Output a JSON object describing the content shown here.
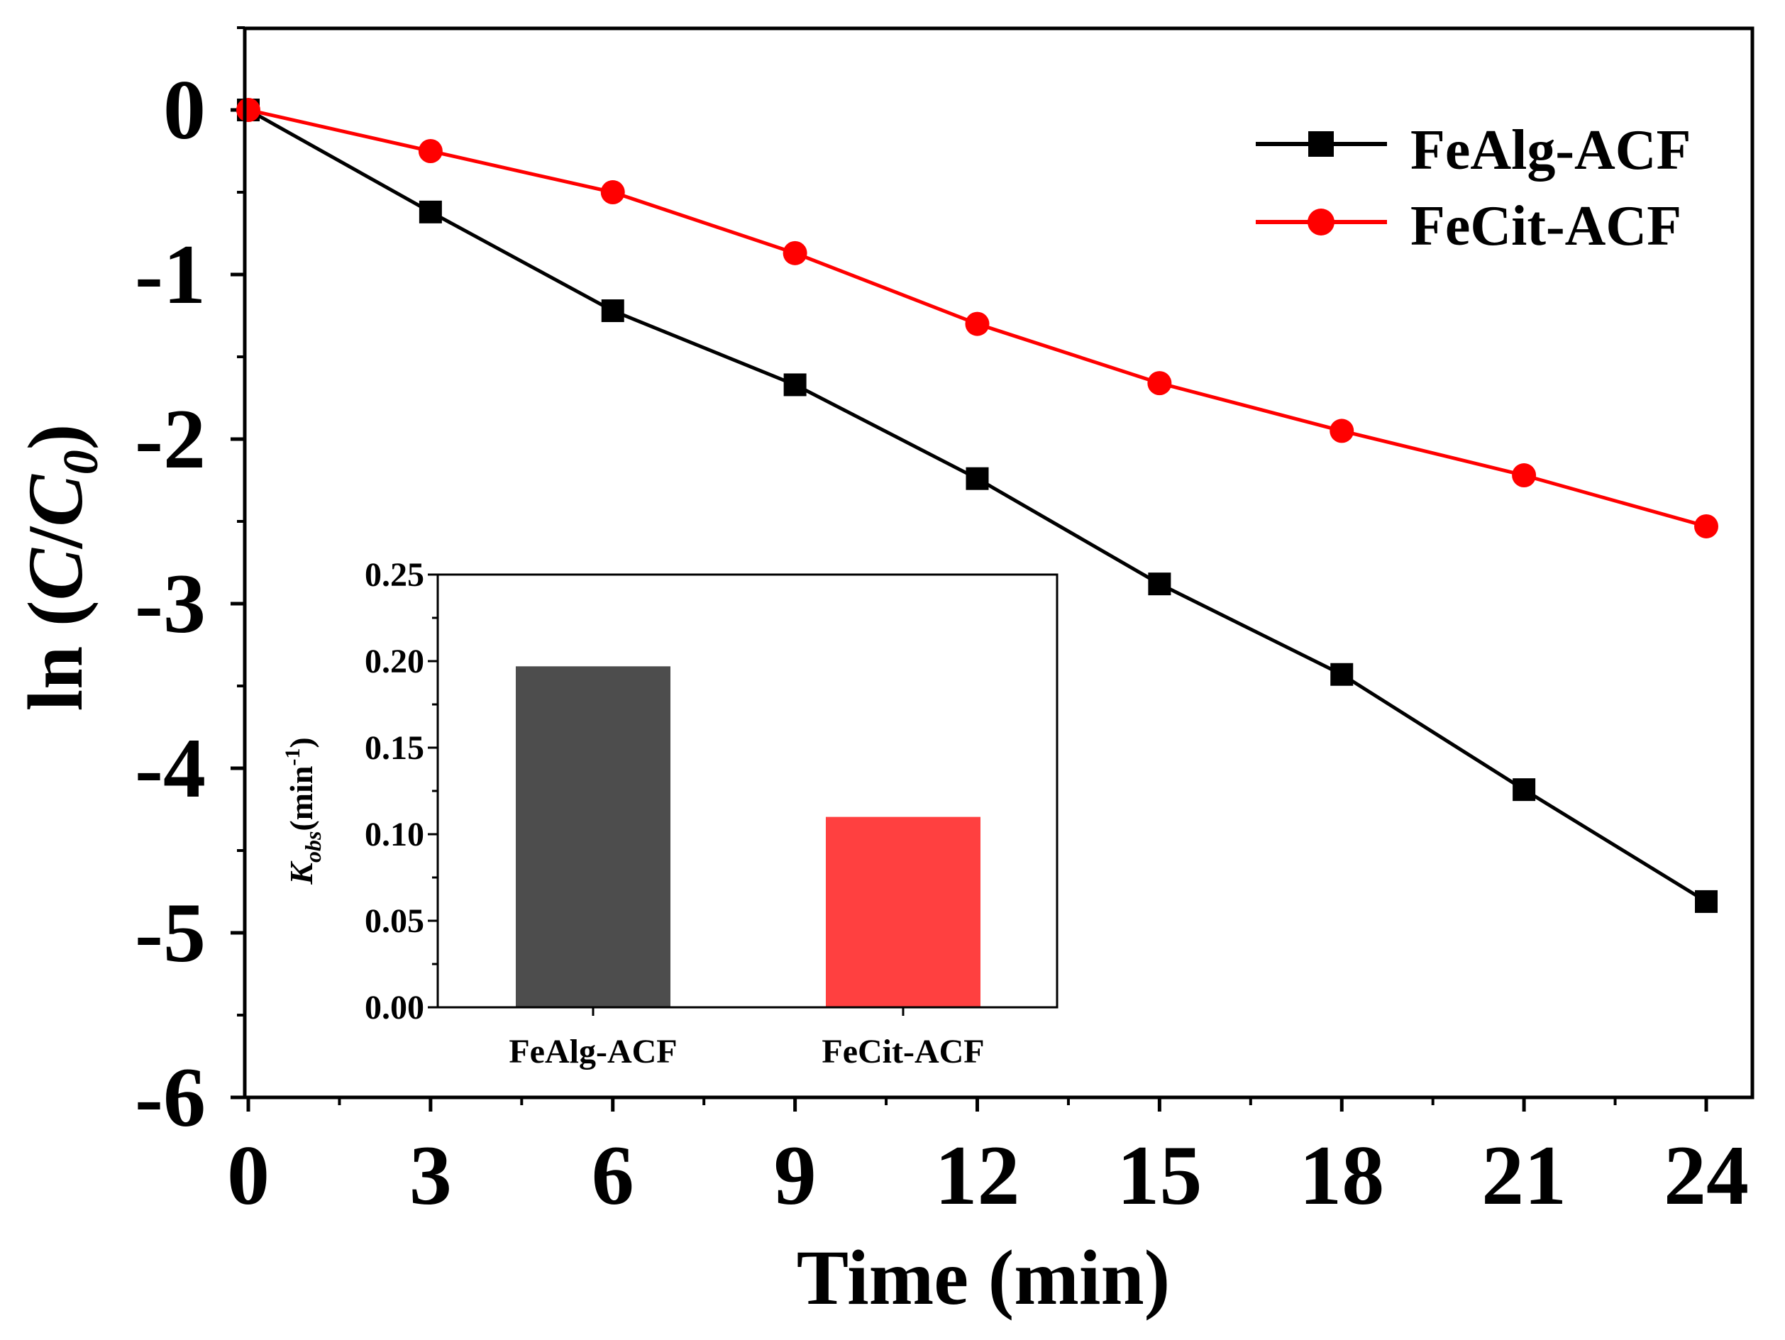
{
  "chart_data": [
    {
      "type": "line",
      "title": "",
      "xlabel": "Time (min)",
      "ylabel_prefix": "ln (",
      "ylabel_C": "C",
      "ylabel_slash": "/",
      "ylabel_C0": "C",
      "ylabel_sub": "0",
      "ylabel_suffix": ")",
      "xlim": [
        0,
        24
      ],
      "ylim": [
        -6,
        0.5
      ],
      "xticks": [
        0,
        3,
        6,
        9,
        12,
        15,
        18,
        21,
        24
      ],
      "yticks": [
        0,
        -1,
        -2,
        -3,
        -4,
        -5,
        -6
      ],
      "grid": false,
      "legend_position": "top-right",
      "series": [
        {
          "name": "FeAlg-ACF",
          "color": "#000000",
          "marker": "square",
          "x": [
            0,
            3,
            6,
            9,
            12,
            15,
            18,
            21,
            24
          ],
          "y": [
            0,
            -0.62,
            -1.22,
            -1.67,
            -2.24,
            -2.88,
            -3.43,
            -4.13,
            -4.81
          ]
        },
        {
          "name": "FeCit-ACF",
          "color": "#ff0000",
          "marker": "circle",
          "x": [
            0,
            3,
            6,
            9,
            12,
            15,
            18,
            21,
            24
          ],
          "y": [
            0,
            -0.25,
            -0.5,
            -0.87,
            -1.3,
            -1.66,
            -1.95,
            -2.22,
            -2.53
          ]
        }
      ]
    },
    {
      "type": "bar",
      "role": "inset",
      "categories": [
        "FeAlg-ACF",
        "FeCit-ACF"
      ],
      "values": [
        0.197,
        0.11
      ],
      "colors": [
        "#4d4d4d",
        "#ff4040"
      ],
      "ylabel_K": "K",
      "ylabel_sub": "obs",
      "ylabel_unit": "(min",
      "ylabel_sup": "-1",
      "ylabel_close": ")",
      "ylim": [
        0,
        0.25
      ],
      "yticks": [
        "0.00",
        "0.05",
        "0.10",
        "0.15",
        "0.20",
        "0.25"
      ]
    }
  ]
}
